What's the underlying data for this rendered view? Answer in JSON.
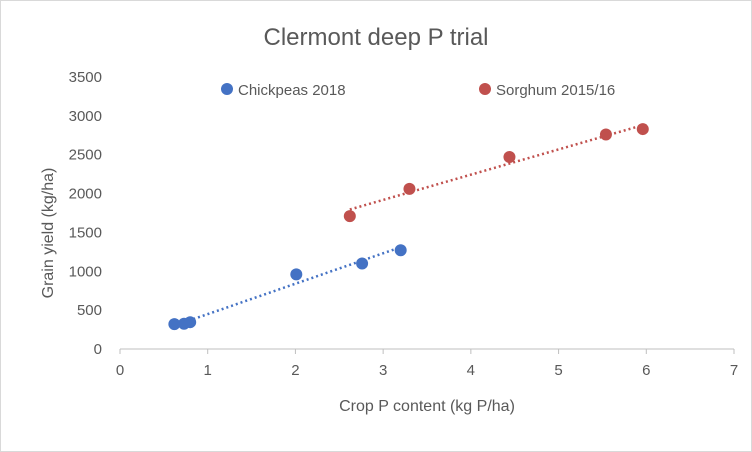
{
  "chart_data": {
    "type": "scatter",
    "title": "Clermont deep P trial",
    "xlabel": "Crop P content (kg P/ha)",
    "ylabel": "Grain yield (kg/ha)",
    "xlim": [
      0,
      7
    ],
    "ylim": [
      0,
      3500
    ],
    "xticks": [
      0,
      1,
      2,
      3,
      4,
      5,
      6,
      7
    ],
    "yticks": [
      0,
      500,
      1000,
      1500,
      2000,
      2500,
      3000,
      3500
    ],
    "grid": false,
    "legend_position": "top",
    "trendlines": "linear, dotted",
    "series": [
      {
        "name": "Chickpeas 2018",
        "color": "#4472c4",
        "points": [
          {
            "x": 0.62,
            "y": 320
          },
          {
            "x": 0.73,
            "y": 325
          },
          {
            "x": 0.8,
            "y": 345
          },
          {
            "x": 2.01,
            "y": 960
          },
          {
            "x": 2.76,
            "y": 1100
          },
          {
            "x": 3.2,
            "y": 1270
          }
        ],
        "trend": [
          {
            "x": 0.62,
            "y": 300
          },
          {
            "x": 3.2,
            "y": 1310
          }
        ]
      },
      {
        "name": "Sorghum 2015/16",
        "color": "#c0504d",
        "points": [
          {
            "x": 2.62,
            "y": 1710
          },
          {
            "x": 3.3,
            "y": 2060
          },
          {
            "x": 4.44,
            "y": 2470
          },
          {
            "x": 5.54,
            "y": 2760
          },
          {
            "x": 5.96,
            "y": 2830
          }
        ],
        "trend": [
          {
            "x": 2.62,
            "y": 1795
          },
          {
            "x": 5.96,
            "y": 2880
          }
        ]
      }
    ]
  }
}
